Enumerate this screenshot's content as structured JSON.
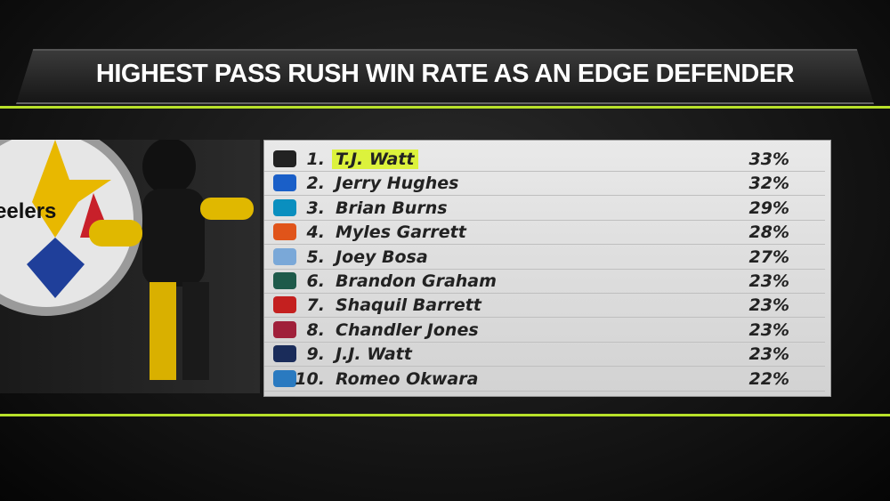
{
  "header": {
    "title": "HIGHEST PASS RUSH WIN RATE AS AN EDGE DEFENDER"
  },
  "logo": {
    "text": "Steelers"
  },
  "table": {
    "highlight_row": 0,
    "rows": [
      [
        "1.",
        "T.J. Watt",
        "33%"
      ],
      [
        "2.",
        "Jerry Hughes",
        "32%"
      ],
      [
        "3.",
        "Brian Burns",
        "29%"
      ],
      [
        "4.",
        "Myles Garrett",
        "28%"
      ],
      [
        "5.",
        "Joey Bosa",
        "27%"
      ],
      [
        "6.",
        "Brandon Graham",
        "23%"
      ],
      [
        "7.",
        "Shaquil Barrett",
        "23%"
      ],
      [
        "8.",
        "Chandler Jones",
        "23%"
      ],
      [
        "9.",
        "J.J. Watt",
        "23%"
      ],
      [
        "10.",
        "Romeo Okwara",
        "22%"
      ]
    ]
  }
}
